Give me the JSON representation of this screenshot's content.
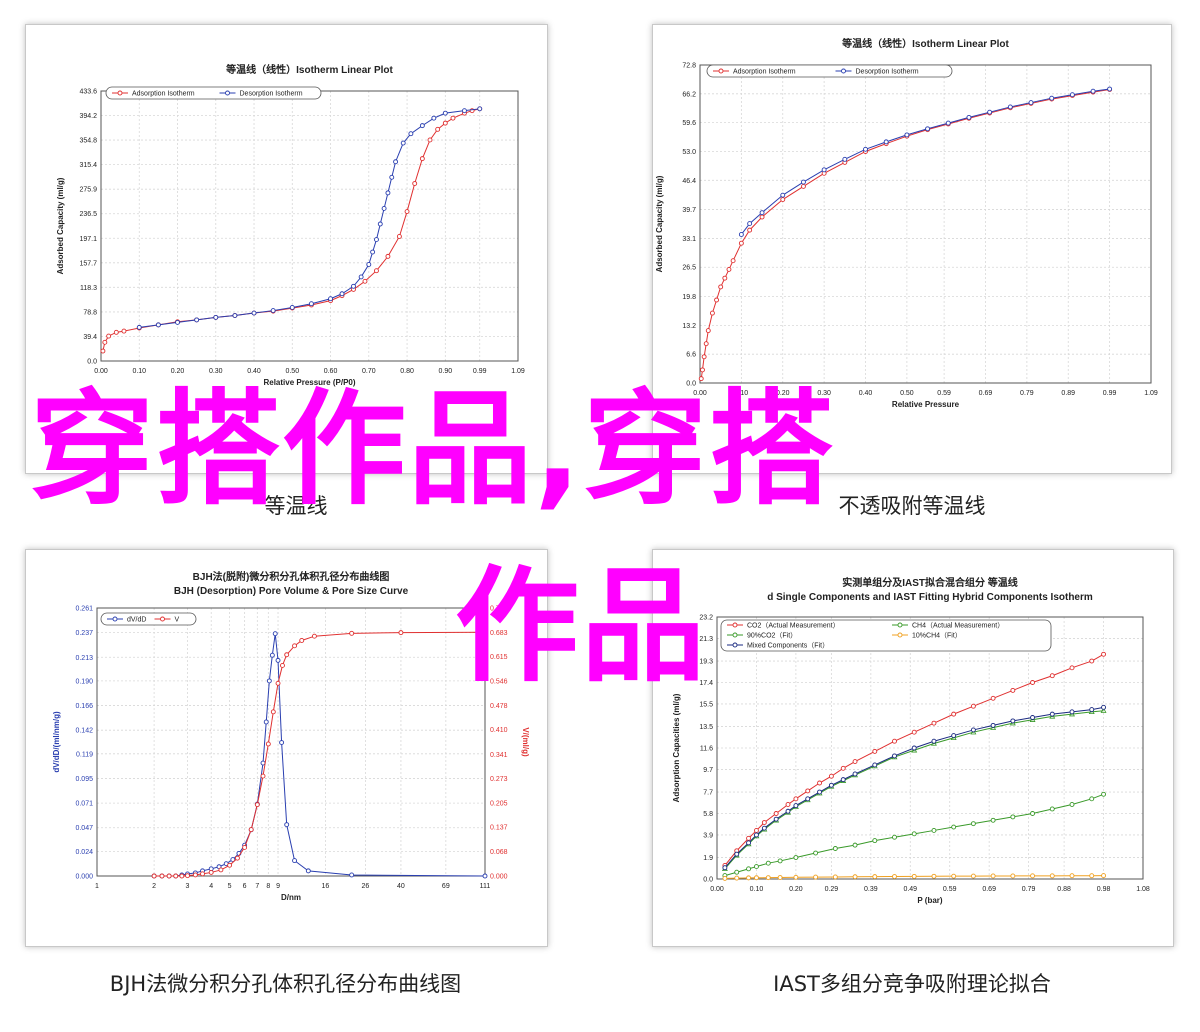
{
  "captions": {
    "c1": "等温线",
    "c2": "不透吸附等温线",
    "c3": "BJH法微分积分孔体积孔径分布曲线图",
    "c4": "IAST多组分竞争吸附理论拟合"
  },
  "overlay": {
    "line1": "穿搭作品,穿搭",
    "line2": "作品"
  },
  "colors": {
    "red": "#e03030",
    "blue": "#2a3fb0",
    "green": "#3a9a2a",
    "orange": "#f0a020",
    "darkblue": "#1a2a80",
    "overlay": "#ff00ff"
  },
  "chart_data": [
    {
      "type": "line",
      "title": "等温线（线性）Isotherm Linear Plot",
      "xlabel": "Relative Pressure (P/P0)",
      "ylabel": "Adsorbed Capacity (ml/g)",
      "xlim": [
        0,
        1.09
      ],
      "ylim": [
        0,
        433.6
      ],
      "xticks": [
        "0.00",
        "0.10",
        "0.20",
        "0.30",
        "0.40",
        "0.50",
        "0.60",
        "0.70",
        "0.80",
        "0.90",
        "0.99",
        "1.09"
      ],
      "xtick_vals": [
        0,
        0.1,
        0.2,
        0.3,
        0.4,
        0.5,
        0.6,
        0.7,
        0.8,
        0.9,
        0.99,
        1.09
      ],
      "yticks": [
        "0.0",
        "39.4",
        "78.8",
        "118.3",
        "157.7",
        "197.1",
        "236.5",
        "275.9",
        "315.4",
        "354.8",
        "394.2",
        "433.6"
      ],
      "ytick_vals": [
        0,
        39.4,
        78.8,
        118.3,
        157.7,
        197.1,
        236.5,
        275.9,
        315.4,
        354.8,
        394.2,
        433.6
      ],
      "legend": [
        "Adsorption Isotherm",
        "Desorption Isotherm"
      ],
      "series": [
        {
          "name": "Adsorption Isotherm",
          "color": "red",
          "x": [
            0.005,
            0.01,
            0.02,
            0.04,
            0.06,
            0.1,
            0.15,
            0.2,
            0.25,
            0.3,
            0.35,
            0.4,
            0.45,
            0.5,
            0.55,
            0.6,
            0.63,
            0.66,
            0.69,
            0.72,
            0.75,
            0.78,
            0.8,
            0.82,
            0.84,
            0.86,
            0.88,
            0.9,
            0.92,
            0.95,
            0.97,
            0.99
          ],
          "y": [
            16,
            30,
            40,
            46,
            48,
            53,
            58,
            63,
            66,
            70,
            73,
            77,
            80,
            85,
            90,
            97,
            105,
            115,
            128,
            145,
            168,
            200,
            240,
            285,
            325,
            355,
            372,
            382,
            390,
            398,
            402,
            405
          ]
        },
        {
          "name": "Desorption Isotherm",
          "color": "blue",
          "x": [
            0.99,
            0.95,
            0.9,
            0.87,
            0.84,
            0.81,
            0.79,
            0.77,
            0.76,
            0.75,
            0.74,
            0.73,
            0.72,
            0.71,
            0.7,
            0.68,
            0.66,
            0.63,
            0.6,
            0.55,
            0.5,
            0.45,
            0.4,
            0.35,
            0.3,
            0.25,
            0.2,
            0.15,
            0.1
          ],
          "y": [
            405,
            402,
            398,
            390,
            378,
            365,
            350,
            320,
            295,
            270,
            245,
            220,
            195,
            175,
            155,
            135,
            120,
            108,
            100,
            92,
            86,
            81,
            77,
            73,
            70,
            66,
            62,
            58,
            54
          ]
        }
      ]
    },
    {
      "type": "line",
      "title": "等温线（线性）Isotherm Linear Plot",
      "xlabel": "Relative Pressure",
      "ylabel": "Adsorbed Capacity (ml/g)",
      "xlim": [
        0,
        1.09
      ],
      "ylim": [
        0,
        72.8
      ],
      "xticks": [
        "0.00",
        "0.10",
        "0.20",
        "0.30",
        "0.40",
        "0.50",
        "0.59",
        "0.69",
        "0.79",
        "0.89",
        "0.99",
        "1.09"
      ],
      "xtick_vals": [
        0,
        0.1,
        0.2,
        0.3,
        0.4,
        0.5,
        0.59,
        0.69,
        0.79,
        0.89,
        0.99,
        1.09
      ],
      "yticks": [
        "0.0",
        "6.6",
        "13.2",
        "19.8",
        "26.5",
        "33.1",
        "39.7",
        "46.4",
        "53.0",
        "59.6",
        "66.2",
        "72.8"
      ],
      "ytick_vals": [
        0,
        6.6,
        13.2,
        19.8,
        26.5,
        33.1,
        39.7,
        46.4,
        53.0,
        59.6,
        66.2,
        72.8
      ],
      "legend": [
        "Adsorption Isotherm",
        "Desorption Isotherm"
      ],
      "series": [
        {
          "name": "Adsorption Isotherm",
          "color": "red",
          "x": [
            0.003,
            0.006,
            0.01,
            0.015,
            0.02,
            0.03,
            0.04,
            0.05,
            0.06,
            0.07,
            0.08,
            0.1,
            0.12,
            0.15,
            0.2,
            0.25,
            0.3,
            0.35,
            0.4,
            0.45,
            0.5,
            0.55,
            0.6,
            0.65,
            0.7,
            0.75,
            0.8,
            0.85,
            0.9,
            0.95,
            0.99
          ],
          "y": [
            1,
            3,
            6,
            9,
            12,
            16,
            19,
            22,
            24,
            26,
            28,
            32,
            35,
            38,
            42,
            45,
            48,
            50.5,
            53,
            54.8,
            56.5,
            58,
            59.3,
            60.6,
            61.8,
            63,
            64,
            65,
            65.8,
            66.6,
            67.2
          ]
        },
        {
          "name": "Desorption Isotherm",
          "color": "blue",
          "x": [
            0.99,
            0.95,
            0.9,
            0.85,
            0.8,
            0.75,
            0.7,
            0.65,
            0.6,
            0.55,
            0.5,
            0.45,
            0.4,
            0.35,
            0.3,
            0.25,
            0.2,
            0.15,
            0.12,
            0.1
          ],
          "y": [
            67.3,
            66.8,
            66,
            65.2,
            64.2,
            63.2,
            62,
            60.8,
            59.5,
            58.2,
            56.8,
            55.2,
            53.5,
            51.2,
            48.8,
            46,
            43,
            39,
            36.5,
            34
          ]
        }
      ]
    },
    {
      "type": "line",
      "title": "BJH法(脱附)微分积分孔体积孔径分布曲线图",
      "subtitle": "BJH (Desorption) Pore Volume & Pore Size Curve",
      "xlabel": "D/nm",
      "ylabel": "dV/dD/(ml/nm/g)",
      "ylabel2": "V/(ml/g)",
      "xscale": "log",
      "xlim": [
        1,
        111
      ],
      "xticks": [
        "1",
        "2",
        "3",
        "4",
        "5",
        "6",
        "7",
        "8",
        "9",
        "16",
        "26",
        "40",
        "69",
        "111"
      ],
      "xtick_vals": [
        1,
        2,
        3,
        4,
        5,
        6,
        7,
        8,
        9,
        16,
        26,
        40,
        69,
        111
      ],
      "ylim": [
        0,
        0.261
      ],
      "yticks": [
        "0.000",
        "0.024",
        "0.047",
        "0.071",
        "0.095",
        "0.119",
        "0.142",
        "0.166",
        "0.190",
        "0.213",
        "0.237",
        "0.261"
      ],
      "ytick_vals": [
        0,
        0.024,
        0.047,
        0.071,
        0.095,
        0.119,
        0.142,
        0.166,
        0.19,
        0.213,
        0.237,
        0.261
      ],
      "ylim2": [
        0,
        0.751
      ],
      "yticks2": [
        "0.000",
        "0.068",
        "0.137",
        "0.205",
        "0.273",
        "0.341",
        "0.410",
        "0.478",
        "0.546",
        "0.615",
        "0.683",
        "0.751"
      ],
      "ytick_vals2": [
        0,
        0.068,
        0.137,
        0.205,
        0.273,
        0.341,
        0.41,
        0.478,
        0.546,
        0.615,
        0.683,
        0.751
      ],
      "legend": [
        "dV/dD",
        "V"
      ],
      "series": [
        {
          "name": "dV/dD",
          "color": "blue",
          "axis": "left",
          "x": [
            2,
            2.2,
            2.4,
            2.6,
            2.8,
            3,
            3.3,
            3.6,
            4,
            4.4,
            4.8,
            5.2,
            5.6,
            6,
            6.5,
            7,
            7.5,
            7.8,
            8.1,
            8.4,
            8.7,
            9,
            9.4,
            10,
            11,
            13,
            22,
            111
          ],
          "y": [
            0,
            0,
            0,
            0,
            0.001,
            0.002,
            0.003,
            0.005,
            0.007,
            0.009,
            0.012,
            0.016,
            0.022,
            0.03,
            0.045,
            0.07,
            0.11,
            0.15,
            0.19,
            0.215,
            0.236,
            0.21,
            0.13,
            0.05,
            0.015,
            0.005,
            0.001,
            0
          ]
        },
        {
          "name": "V",
          "color": "red",
          "axis": "right",
          "x": [
            2,
            2.2,
            2.4,
            2.6,
            2.8,
            3,
            3.3,
            3.6,
            4,
            4.5,
            5,
            5.5,
            6,
            6.5,
            7,
            7.5,
            8,
            8.5,
            9,
            9.5,
            10,
            11,
            12,
            14,
            22,
            40,
            111
          ],
          "y": [
            0,
            0,
            0,
            0,
            0,
            0.001,
            0.003,
            0.006,
            0.01,
            0.017,
            0.03,
            0.05,
            0.08,
            0.13,
            0.2,
            0.28,
            0.37,
            0.46,
            0.54,
            0.59,
            0.62,
            0.645,
            0.66,
            0.672,
            0.68,
            0.682,
            0.683
          ]
        }
      ]
    },
    {
      "type": "line",
      "title": "实测单组分及IAST拟合混合组分 等温线",
      "subtitle": "d Single Components and IAST Fitting Hybrid Components Isotherm",
      "xlabel": "P (bar)",
      "ylabel": "Adsorption Capacities (ml/g)",
      "xlim": [
        0,
        1.08
      ],
      "ylim": [
        0,
        23.2
      ],
      "xticks": [
        "0.00",
        "0.10",
        "0.20",
        "0.29",
        "0.39",
        "0.49",
        "0.59",
        "0.69",
        "0.79",
        "0.88",
        "0.98",
        "1.08"
      ],
      "xtick_vals": [
        0,
        0.1,
        0.2,
        0.29,
        0.39,
        0.49,
        0.59,
        0.69,
        0.79,
        0.88,
        0.98,
        1.08
      ],
      "yticks": [
        "0.0",
        "1.9",
        "3.9",
        "5.8",
        "7.7",
        "9.7",
        "11.6",
        "13.5",
        "15.5",
        "17.4",
        "19.3",
        "21.3",
        "23.2"
      ],
      "ytick_vals": [
        0,
        1.9,
        3.9,
        5.8,
        7.7,
        9.7,
        11.6,
        13.5,
        15.5,
        17.4,
        19.3,
        21.3,
        23.2
      ],
      "legend": [
        "CO2（Actual Measurement）",
        "CH4（Actual Measurement）",
        "90%CO2（Fit）",
        "10%CH4（Fit）",
        "Mixed Components（Fit）"
      ],
      "series": [
        {
          "name": "CO2（Actual Measurement）",
          "color": "red",
          "x": [
            0.02,
            0.05,
            0.08,
            0.1,
            0.12,
            0.15,
            0.18,
            0.2,
            0.23,
            0.26,
            0.29,
            0.32,
            0.35,
            0.4,
            0.45,
            0.5,
            0.55,
            0.6,
            0.65,
            0.7,
            0.75,
            0.8,
            0.85,
            0.9,
            0.95,
            0.98
          ],
          "y": [
            1.2,
            2.5,
            3.6,
            4.3,
            5,
            5.8,
            6.6,
            7.1,
            7.8,
            8.5,
            9.1,
            9.8,
            10.4,
            11.3,
            12.2,
            13,
            13.8,
            14.6,
            15.3,
            16,
            16.7,
            17.4,
            18,
            18.7,
            19.3,
            19.9
          ]
        },
        {
          "name": "CH4（Actual Measurement）",
          "color": "green",
          "x": [
            0.02,
            0.05,
            0.08,
            0.1,
            0.13,
            0.16,
            0.2,
            0.25,
            0.3,
            0.35,
            0.4,
            0.45,
            0.5,
            0.55,
            0.6,
            0.65,
            0.7,
            0.75,
            0.8,
            0.85,
            0.9,
            0.95,
            0.98
          ],
          "y": [
            0.3,
            0.6,
            0.9,
            1.1,
            1.4,
            1.6,
            1.9,
            2.3,
            2.7,
            3,
            3.4,
            3.7,
            4,
            4.3,
            4.6,
            4.9,
            5.2,
            5.5,
            5.8,
            6.2,
            6.6,
            7.1,
            7.5
          ]
        },
        {
          "name": "90%CO2（Fit）",
          "color": "green",
          "x": [
            0.02,
            0.05,
            0.08,
            0.1,
            0.12,
            0.15,
            0.18,
            0.2,
            0.23,
            0.26,
            0.29,
            0.32,
            0.35,
            0.4,
            0.45,
            0.5,
            0.55,
            0.6,
            0.65,
            0.7,
            0.75,
            0.8,
            0.85,
            0.9,
            0.95,
            0.98
          ],
          "y": [
            0.9,
            2.1,
            3.1,
            3.8,
            4.4,
            5.2,
            5.9,
            6.4,
            7,
            7.6,
            8.2,
            8.7,
            9.2,
            10,
            10.8,
            11.4,
            12,
            12.5,
            13,
            13.4,
            13.8,
            14.1,
            14.4,
            14.6,
            14.8,
            14.9
          ]
        },
        {
          "name": "10%CH4（Fit）",
          "color": "orange",
          "x": [
            0.02,
            0.05,
            0.08,
            0.1,
            0.13,
            0.16,
            0.2,
            0.25,
            0.3,
            0.35,
            0.4,
            0.45,
            0.5,
            0.55,
            0.6,
            0.65,
            0.7,
            0.75,
            0.8,
            0.85,
            0.9,
            0.95,
            0.98
          ],
          "y": [
            0.05,
            0.08,
            0.1,
            0.11,
            0.12,
            0.13,
            0.15,
            0.17,
            0.18,
            0.2,
            0.21,
            0.22,
            0.23,
            0.24,
            0.25,
            0.26,
            0.27,
            0.27,
            0.28,
            0.28,
            0.29,
            0.29,
            0.3
          ]
        },
        {
          "name": "Mixed Components（Fit）",
          "color": "darkblue",
          "x": [
            0.02,
            0.05,
            0.08,
            0.1,
            0.12,
            0.15,
            0.18,
            0.2,
            0.23,
            0.26,
            0.29,
            0.32,
            0.35,
            0.4,
            0.45,
            0.5,
            0.55,
            0.6,
            0.65,
            0.7,
            0.75,
            0.8,
            0.85,
            0.9,
            0.95,
            0.98
          ],
          "y": [
            1,
            2.2,
            3.2,
            3.9,
            4.5,
            5.3,
            6,
            6.5,
            7.1,
            7.7,
            8.3,
            8.8,
            9.3,
            10.1,
            10.9,
            11.6,
            12.2,
            12.7,
            13.2,
            13.6,
            14,
            14.3,
            14.6,
            14.8,
            15,
            15.2
          ]
        }
      ]
    }
  ]
}
